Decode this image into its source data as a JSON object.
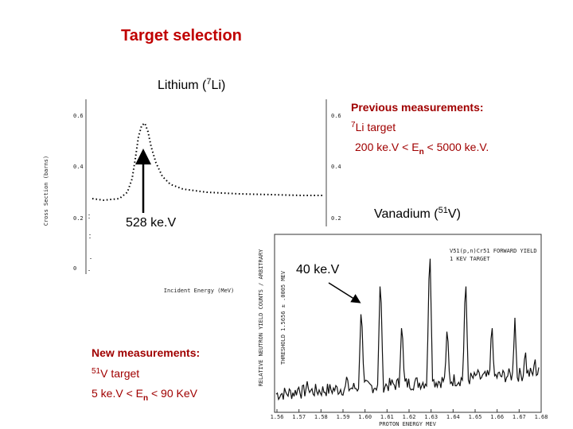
{
  "title": "Target selection",
  "lithium": {
    "label": [
      "Lithium (",
      "7",
      "Li)"
    ],
    "y_axis_label": "Cross Section (barns)",
    "x_axis_label": "Incident Energy (MeV)",
    "left_ticks": [
      "0.6",
      "0.4",
      "0.2",
      "0"
    ],
    "right_ticks": [
      "0.6",
      "0.4",
      "0.2"
    ],
    "arrow_label": "528 ke.V"
  },
  "previous": {
    "heading": "Previous measurements:",
    "target": [
      "7",
      "Li target"
    ],
    "range": [
      "200 ke.V < E",
      "n",
      " < 5000 ke.V."
    ]
  },
  "vanadium": {
    "label": [
      "Vanadium (",
      "51",
      "V)"
    ],
    "arrow_label": "40 ke.V",
    "x_axis_label": "PROTON ENERGY MEV",
    "y_axis_label": "RELATIVE NEUTRON YIELD COUNTS / ARBITRARY",
    "reaction": "V51(p,n)Cr51 FORWARD YIELD",
    "target_note": "1 KEV TARGET",
    "threshold": "THRESHOLD 1.5656 ± .0005 MEV",
    "x_ticks": [
      "1.56",
      "1.57",
      "1.58",
      "1.59",
      "1.60",
      "1.61",
      "1.62",
      "1.63",
      "1.64",
      "1.65",
      "1.66",
      "1.67",
      "1.68"
    ]
  },
  "new": {
    "heading": "New measurements:",
    "target": [
      "51",
      "V target"
    ],
    "range": [
      "5 ke.V < E",
      "n",
      " < 90 KeV"
    ]
  }
}
